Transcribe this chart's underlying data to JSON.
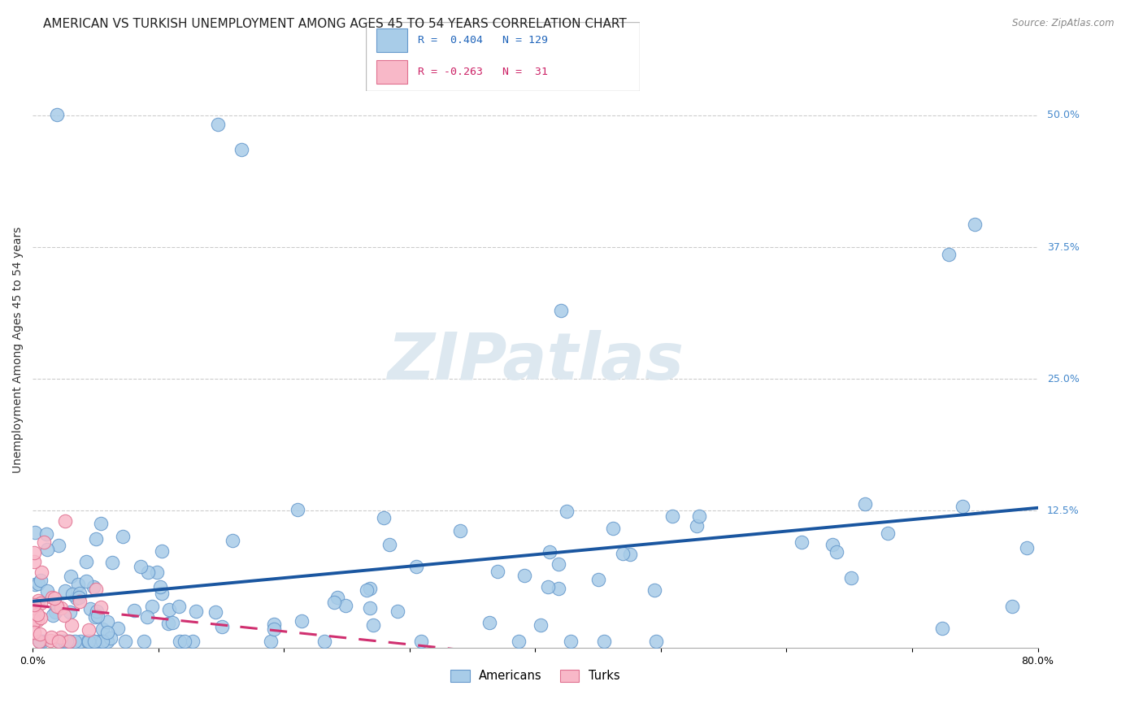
{
  "title": "AMERICAN VS TURKISH UNEMPLOYMENT AMONG AGES 45 TO 54 YEARS CORRELATION CHART",
  "source": "Source: ZipAtlas.com",
  "ylabel": "Unemployment Among Ages 45 to 54 years",
  "xlim": [
    0,
    0.8
  ],
  "ylim": [
    -0.005,
    0.56
  ],
  "ytick_positions": [
    0.125,
    0.25,
    0.375,
    0.5
  ],
  "ytick_labels": [
    "12.5%",
    "25.0%",
    "37.5%",
    "50.0%"
  ],
  "american_color": "#a8cce8",
  "american_edge": "#6699cc",
  "turkish_color": "#f8b8c8",
  "turkish_edge": "#e07090",
  "american_line_color": "#1a56a0",
  "turkish_line_color": "#d03070",
  "background_color": "#ffffff",
  "grid_color": "#cccccc",
  "title_fontsize": 11,
  "axis_label_fontsize": 10,
  "tick_label_fontsize": 9,
  "watermark_text": "ZIPatlas",
  "watermark_color": "#dde8f0",
  "legend_r_am_color": "#2266bb",
  "legend_r_tr_color": "#cc2266",
  "legend_n_color": "#333333"
}
